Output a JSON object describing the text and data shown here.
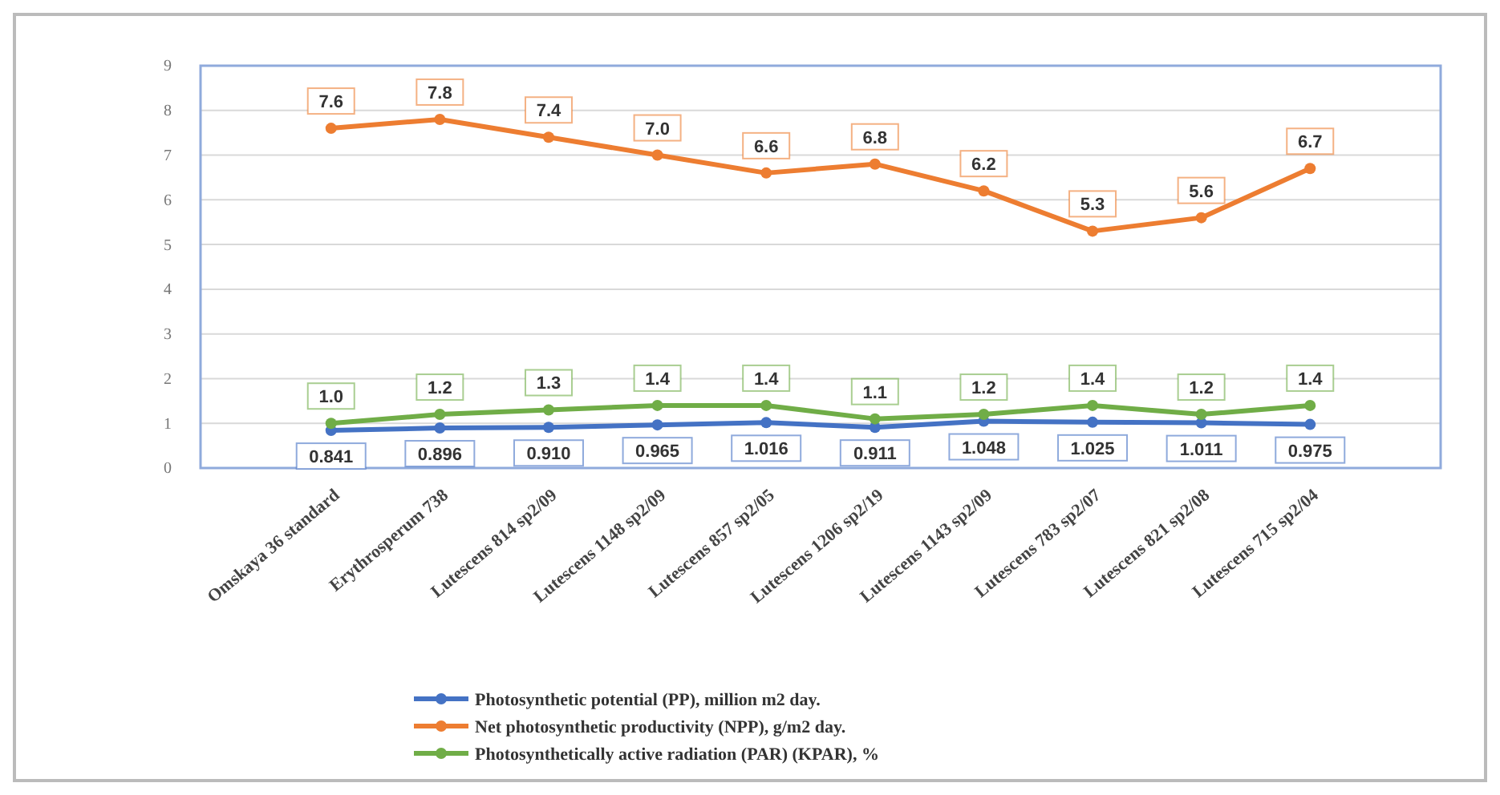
{
  "chart_data": {
    "type": "line",
    "categories": [
      "Omskaya 36 standard",
      "Erythrosperum 738",
      "Lutescens  814 sp2/09",
      "Lutescens 1148 sp2/09",
      "Lutescens  857 sp2/05",
      "Lutescens  1206 sp2/19",
      "Lutescens  1143 sp2/09",
      "Lutescens  783 sp2/07",
      "Lutescens  821 sp2/08",
      "Lutescens 715 sp2/04"
    ],
    "series": [
      {
        "name": "Photosynthetic potential (PP), million m2 day.",
        "color": "#4472c4",
        "values": [
          0.841,
          0.896,
          0.91,
          0.965,
          1.016,
          0.911,
          1.048,
          1.025,
          1.011,
          0.975
        ],
        "value_labels": [
          "0.841",
          "0.896",
          "0.910",
          "0.965",
          "1.016",
          "0.911",
          "1.048",
          "1.025",
          "1.011",
          "0.975"
        ]
      },
      {
        "name": "Net photosynthetic productivity (NPP), g/m2 day.",
        "color": "#ed7d31",
        "values": [
          7.6,
          7.8,
          7.4,
          7.0,
          6.6,
          6.8,
          6.2,
          5.3,
          5.6,
          6.7
        ],
        "value_labels": [
          "7.6",
          "7.8",
          "7.4",
          "7.0",
          "6.6",
          "6.8",
          "6.2",
          "5.3",
          "5.6",
          "6.7"
        ]
      },
      {
        "name": "Photosynthetically active radiation (PAR)  (KPAR), %",
        "color": "#70ad47",
        "values": [
          1.0,
          1.2,
          1.3,
          1.4,
          1.4,
          1.1,
          1.2,
          1.4,
          1.2,
          1.4
        ],
        "value_labels": [
          "1.0",
          "1.2",
          "1.3",
          "1.4",
          "1.4",
          "1.1",
          "1.2",
          "1.4",
          "1.2",
          "1.4"
        ]
      }
    ],
    "ylim": [
      0,
      9
    ],
    "yticks": [
      0,
      1,
      2,
      3,
      4,
      5,
      6,
      7,
      8,
      9
    ],
    "grid": "y",
    "legend": "bottom",
    "marker": "circle",
    "line_style": "solid"
  }
}
